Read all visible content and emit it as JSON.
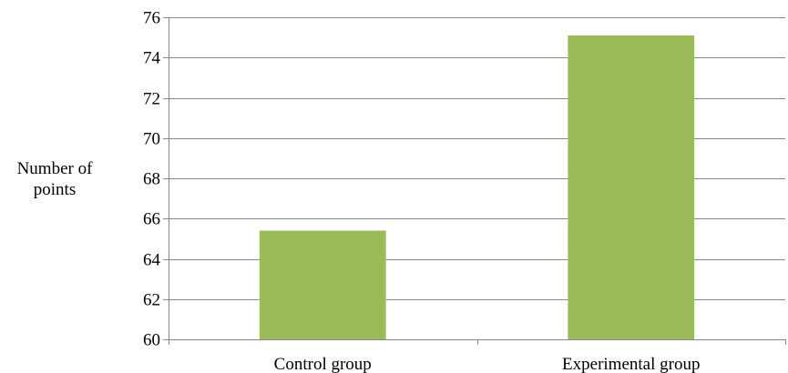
{
  "chart_data": {
    "type": "bar",
    "title": "",
    "xlabel": "",
    "ylabel": "Number of\npoints",
    "categories": [
      "Control group",
      "Experimental group"
    ],
    "values": [
      65.4,
      75.1
    ],
    "ylim": [
      60,
      76
    ],
    "yticks": [
      60,
      62,
      64,
      66,
      68,
      70,
      72,
      74,
      76
    ],
    "grid": true,
    "legend": "none",
    "bar_color": "#9bbb59",
    "grid_color": "#888888"
  }
}
